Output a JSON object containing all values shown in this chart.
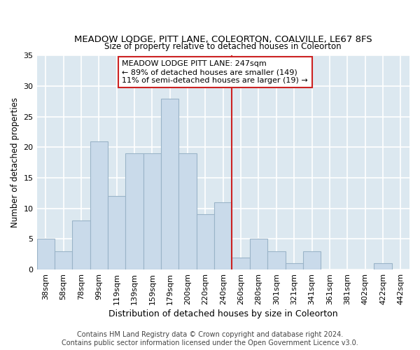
{
  "title": "MEADOW LODGE, PITT LANE, COLEORTON, COALVILLE, LE67 8FS",
  "subtitle": "Size of property relative to detached houses in Coleorton",
  "xlabel": "Distribution of detached houses by size in Coleorton",
  "ylabel": "Number of detached properties",
  "footer_line1": "Contains HM Land Registry data © Crown copyright and database right 2024.",
  "footer_line2": "Contains public sector information licensed under the Open Government Licence v3.0.",
  "bar_labels": [
    "38sqm",
    "58sqm",
    "78sqm",
    "99sqm",
    "119sqm",
    "139sqm",
    "159sqm",
    "179sqm",
    "200sqm",
    "220sqm",
    "240sqm",
    "260sqm",
    "280sqm",
    "301sqm",
    "321sqm",
    "341sqm",
    "361sqm",
    "381sqm",
    "402sqm",
    "422sqm",
    "442sqm"
  ],
  "bar_values": [
    5,
    3,
    8,
    21,
    12,
    19,
    19,
    28,
    19,
    9,
    11,
    2,
    5,
    3,
    1,
    3,
    0,
    0,
    0,
    1,
    0
  ],
  "bar_color": "#c9daea",
  "bar_edge_color": "#9ab4c8",
  "annotation_box_text": "MEADOW LODGE PITT LANE: 247sqm\n← 89% of detached houses are smaller (149)\n11% of semi-detached houses are larger (19) →",
  "vline_color": "#cc2222",
  "annotation_box_color": "#cc2222",
  "ylim": [
    0,
    35
  ],
  "yticks": [
    0,
    5,
    10,
    15,
    20,
    25,
    30,
    35
  ],
  "fig_background": "#ffffff",
  "plot_background": "#dce8f0",
  "grid_color": "#ffffff",
  "title_fontsize": 9.5,
  "subtitle_fontsize": 8.5,
  "xlabel_fontsize": 9,
  "ylabel_fontsize": 8.5,
  "tick_fontsize": 8,
  "annotation_fontsize": 8,
  "footer_fontsize": 7
}
